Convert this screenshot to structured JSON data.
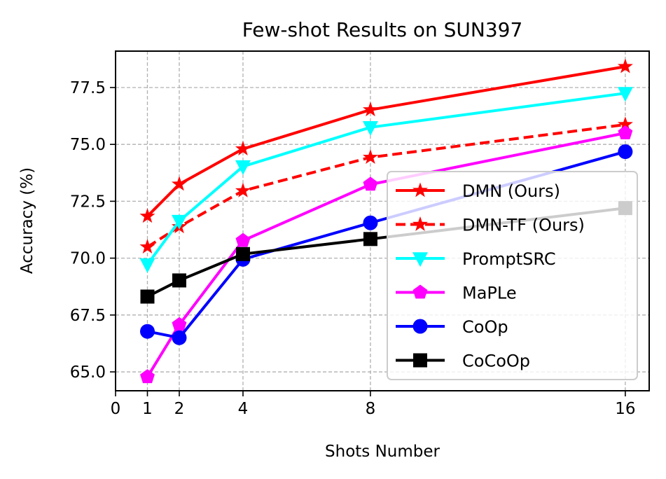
{
  "chart_data": {
    "type": "line",
    "title": "Few-shot Results on SUN397",
    "xlabel": "Shots Number",
    "ylabel": "Accuracy (%)",
    "x": [
      1,
      2,
      4,
      8,
      16
    ],
    "xticks": [
      "0",
      "1",
      "2",
      "4",
      "8",
      "16"
    ],
    "xtick_values": [
      0,
      1,
      2,
      4,
      8,
      16
    ],
    "yticks": [
      "65.0",
      "67.5",
      "70.0",
      "72.5",
      "75.0",
      "77.5"
    ],
    "ytick_values": [
      65.0,
      67.5,
      70.0,
      72.5,
      75.0,
      77.5
    ],
    "xlim": [
      0,
      16.75
    ],
    "ylim": [
      64.17,
      79.1
    ],
    "grid": true,
    "legend_position": "lower-right",
    "series": [
      {
        "name": "DMN (Ours)",
        "color": "#ff0000",
        "marker": "star",
        "dashed": false,
        "values": [
          71.84,
          73.25,
          74.8,
          76.52,
          78.42
        ]
      },
      {
        "name": "DMN-TF (Ours)",
        "color": "#ff0000",
        "marker": "star",
        "dashed": true,
        "values": [
          70.49,
          71.38,
          72.96,
          74.43,
          75.87
        ]
      },
      {
        "name": "PromptSRC",
        "color": "#00ffff",
        "marker": "triangle-down",
        "dashed": false,
        "values": [
          69.72,
          71.63,
          74.03,
          75.75,
          77.25
        ]
      },
      {
        "name": "MaPLe",
        "color": "#ff00ff",
        "marker": "pentagon",
        "dashed": false,
        "values": [
          64.78,
          67.07,
          70.77,
          73.24,
          75.5
        ]
      },
      {
        "name": "CoOp",
        "color": "#0000ff",
        "marker": "circle",
        "dashed": false,
        "values": [
          66.78,
          66.5,
          69.95,
          71.55,
          74.68
        ]
      },
      {
        "name": "CoCoOp",
        "color": "#000000",
        "marker": "square",
        "dashed": false,
        "values": [
          68.31,
          69.02,
          70.18,
          70.84,
          72.2
        ]
      }
    ]
  }
}
